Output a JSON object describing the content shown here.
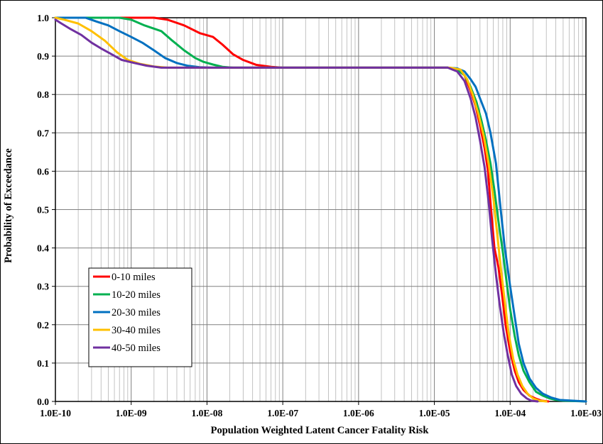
{
  "chart_data": {
    "type": "line",
    "title": "",
    "xlabel": "Population Weighted Latent Cancer Fatality Risk",
    "ylabel": "Probability of Exceedance",
    "x_scale": "log",
    "xlim": [
      1e-10,
      0.001
    ],
    "ylim": [
      0,
      1.0
    ],
    "grid": true,
    "legend_position": "lower-left",
    "x_tick_labels": [
      "1.0E-10",
      "1.0E-09",
      "1.0E-08",
      "1.0E-07",
      "1.0E-06",
      "1.0E-05",
      "1.0E-04",
      "1.0E-03"
    ],
    "y_tick_labels": [
      "0.0",
      "0.1",
      "0.2",
      "0.3",
      "0.4",
      "0.5",
      "0.6",
      "0.7",
      "0.8",
      "0.9",
      "1.0"
    ],
    "series": [
      {
        "name": "0-10 miles",
        "color": "#ff0000",
        "x": [
          1e-10,
          2e-09,
          3e-09,
          5e-09,
          8e-09,
          1.2e-08,
          1.6e-08,
          2.2e-08,
          3e-08,
          4.5e-08,
          7e-08,
          1e-07,
          1e-06,
          1.5e-05,
          2e-05,
          2.5e-05,
          3e-05,
          3.5e-05,
          4e-05,
          4.6e-05,
          5.1e-05,
          5.6e-05,
          6.2e-05,
          7e-05,
          7.8e-05,
          8.7e-05,
          0.0001,
          0.000115,
          0.00013,
          0.00015,
          0.00018,
          0.00022,
          0.00026,
          0.00032
        ],
        "y": [
          1.0,
          1.0,
          0.995,
          0.98,
          0.96,
          0.95,
          0.93,
          0.905,
          0.89,
          0.877,
          0.872,
          0.87,
          0.87,
          0.87,
          0.865,
          0.85,
          0.81,
          0.77,
          0.72,
          0.66,
          0.6,
          0.5,
          0.4,
          0.35,
          0.28,
          0.2,
          0.13,
          0.08,
          0.05,
          0.03,
          0.015,
          0.007,
          0.002,
          0.0
        ]
      },
      {
        "name": "10-20 miles",
        "color": "#00b050",
        "x": [
          1e-10,
          7e-10,
          1e-09,
          1.5e-09,
          2.5e-09,
          3.5e-09,
          5e-09,
          7e-09,
          9e-09,
          1.2e-08,
          1.6e-08,
          2.2e-08,
          1e-07,
          1e-06,
          1.5e-05,
          2e-05,
          2.5e-05,
          3e-05,
          3.6e-05,
          4.2e-05,
          4.8e-05,
          5.5e-05,
          6.2e-05,
          7e-05,
          8e-05,
          9e-05,
          0.0001,
          0.000115,
          0.00013,
          0.00015,
          0.00018,
          0.00022,
          0.00027,
          0.00033,
          0.0004,
          0.0005,
          0.001
        ],
        "y": [
          1.0,
          1.0,
          0.995,
          0.98,
          0.965,
          0.94,
          0.915,
          0.895,
          0.885,
          0.878,
          0.872,
          0.87,
          0.87,
          0.87,
          0.87,
          0.865,
          0.85,
          0.82,
          0.78,
          0.73,
          0.68,
          0.62,
          0.55,
          0.47,
          0.39,
          0.31,
          0.24,
          0.17,
          0.12,
          0.08,
          0.05,
          0.025,
          0.015,
          0.008,
          0.004,
          0.002,
          0.0
        ]
      },
      {
        "name": "20-30 miles",
        "color": "#0070c0",
        "x": [
          1e-10,
          2.5e-10,
          3.5e-10,
          5e-10,
          7e-10,
          1e-09,
          1.4e-09,
          2e-09,
          2.8e-09,
          4e-09,
          5.5e-09,
          8e-09,
          1.2e-08,
          1e-07,
          1e-06,
          1.5e-05,
          2e-05,
          2.5e-05,
          3e-05,
          3.5e-05,
          4e-05,
          4.8e-05,
          5.5e-05,
          6.5e-05,
          7.5e-05,
          8.5e-05,
          0.0001,
          0.000115,
          0.00013,
          0.00015,
          0.00018,
          0.00022,
          0.00027,
          0.00035,
          0.00045,
          0.001
        ],
        "y": [
          1.0,
          1.0,
          0.99,
          0.98,
          0.965,
          0.95,
          0.935,
          0.915,
          0.895,
          0.882,
          0.875,
          0.871,
          0.87,
          0.87,
          0.87,
          0.87,
          0.868,
          0.86,
          0.84,
          0.82,
          0.79,
          0.75,
          0.7,
          0.62,
          0.5,
          0.4,
          0.3,
          0.22,
          0.15,
          0.1,
          0.06,
          0.035,
          0.02,
          0.01,
          0.004,
          0.0
        ]
      },
      {
        "name": "30-40 miles",
        "color": "#ffc000",
        "x": [
          1e-10,
          1.3e-10,
          2e-10,
          3e-10,
          4.5e-10,
          6.5e-10,
          9e-10,
          1.3e-09,
          2e-09,
          3e-09,
          1e-07,
          1e-06,
          1.6e-05,
          2.2e-05,
          2.7e-05,
          3.2e-05,
          3.8e-05,
          4.5e-05,
          5.2e-05,
          6e-05,
          6.8e-05,
          7.6e-05,
          8.5e-05,
          9.5e-05,
          0.00011,
          0.000125,
          0.000145,
          0.00017,
          0.0002,
          0.00024,
          0.0003
        ],
        "y": [
          1.0,
          0.995,
          0.985,
          0.965,
          0.94,
          0.91,
          0.89,
          0.88,
          0.873,
          0.87,
          0.87,
          0.87,
          0.87,
          0.865,
          0.84,
          0.8,
          0.75,
          0.69,
          0.62,
          0.53,
          0.43,
          0.34,
          0.26,
          0.18,
          0.11,
          0.07,
          0.04,
          0.02,
          0.008,
          0.002,
          0.0
        ]
      },
      {
        "name": "40-50 miles",
        "color": "#7030a0",
        "x": [
          1e-10,
          1.2e-10,
          1.6e-10,
          2.2e-10,
          3e-10,
          4e-10,
          5.5e-10,
          7.5e-10,
          1.1e-09,
          1.6e-09,
          2.5e-09,
          1e-07,
          1e-06,
          1.5e-05,
          2e-05,
          2.5e-05,
          3e-05,
          3.5e-05,
          4e-05,
          4.6e-05,
          5.2e-05,
          5.8e-05,
          6.5e-05,
          7.3e-05,
          8.2e-05,
          9.3e-05,
          0.000105,
          0.00012,
          0.00014,
          0.000165,
          0.00019,
          0.00023
        ],
        "y": [
          0.995,
          0.985,
          0.97,
          0.955,
          0.935,
          0.92,
          0.905,
          0.89,
          0.882,
          0.875,
          0.87,
          0.87,
          0.87,
          0.87,
          0.86,
          0.835,
          0.79,
          0.74,
          0.68,
          0.61,
          0.52,
          0.42,
          0.33,
          0.25,
          0.18,
          0.12,
          0.07,
          0.04,
          0.02,
          0.008,
          0.002,
          0.0
        ]
      }
    ]
  }
}
